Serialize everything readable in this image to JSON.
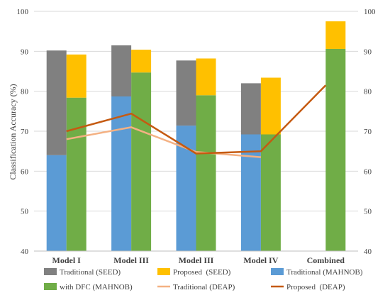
{
  "chart_data": {
    "type": "bar",
    "ylabel": "Classification Accuracy (%)",
    "ylim": [
      40,
      100
    ],
    "yticks": [
      40,
      50,
      60,
      70,
      80,
      90,
      100
    ],
    "grid": true,
    "legend_position": "bottom",
    "categories": [
      "Model I",
      "Model III",
      "Model III",
      "Model IV",
      "Combined"
    ],
    "bar_series": [
      {
        "name": "Traditional (SEED)",
        "color": "#808080",
        "group": "left",
        "stacked_on": "Traditional (MAHNOB)",
        "values": [
          90.2,
          91.5,
          87.7,
          82.0,
          null
        ]
      },
      {
        "name": "Traditional (MAHNOB)",
        "color": "#5b9bd5",
        "group": "left",
        "stacked_on": null,
        "values": [
          64.0,
          78.7,
          71.4,
          69.2,
          null
        ]
      },
      {
        "name": "Proposed  (SEED)",
        "color": "#ffc000",
        "group": "right",
        "stacked_on": "with DFC (MAHNOB)",
        "values": [
          89.2,
          90.4,
          88.2,
          83.4,
          97.5
        ]
      },
      {
        "name": "with DFC (MAHNOB)",
        "color": "#70ad47",
        "group": "right",
        "stacked_on": null,
        "values": [
          78.4,
          84.7,
          79.0,
          69.2,
          90.6
        ]
      }
    ],
    "line_series": [
      {
        "name": "Traditional (DEAP)",
        "color": "#f4b183",
        "values": [
          68.0,
          71.0,
          64.8,
          63.5,
          null
        ]
      },
      {
        "name": "Proposed  (DEAP)",
        "color": "#c55a11",
        "values": [
          70.0,
          74.4,
          64.4,
          65.0,
          81.5
        ]
      }
    ],
    "legend_rows": [
      [
        "Traditional (SEED)",
        "Proposed  (SEED)",
        "Traditional (MAHNOB)"
      ],
      [
        "with DFC (MAHNOB)",
        "Traditional (DEAP)",
        "Proposed  (DEAP)"
      ]
    ]
  }
}
